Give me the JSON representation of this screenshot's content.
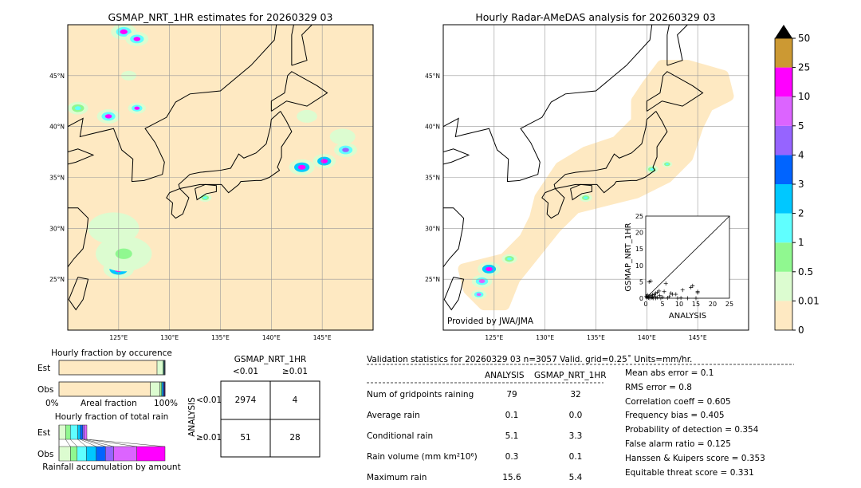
{
  "left_map": {
    "title": "GSMAP_NRT_1HR estimates for 20260329 03",
    "lon_ticks": [
      "125°E",
      "130°E",
      "135°E",
      "140°E",
      "145°E"
    ],
    "lat_ticks": [
      "45°N",
      "40°N",
      "35°N",
      "30°N",
      "25°N"
    ]
  },
  "right_map": {
    "title": "Hourly Radar-AMeDAS analysis for 20260329 03",
    "lon_ticks": [
      "125°E",
      "130°E",
      "135°E",
      "140°E",
      "145°E"
    ],
    "lat_ticks": [
      "45°N",
      "40°N",
      "35°N",
      "30°N",
      "25°N"
    ],
    "credit": "Provided by JWA/JMA"
  },
  "colors": {
    "levels": [
      {
        "from": "0",
        "to": "0.01",
        "color": "#fee9c2"
      },
      {
        "from": "0.01",
        "to": "0.5",
        "color": "#dcfcd0"
      },
      {
        "from": "0.5",
        "to": "1",
        "color": "#90f890"
      },
      {
        "from": "1",
        "to": "2",
        "color": "#60ffff"
      },
      {
        "from": "2",
        "to": "3",
        "color": "#00c8ff"
      },
      {
        "from": "3",
        "to": "4",
        "color": "#0064ff"
      },
      {
        "from": "4",
        "to": "5",
        "color": "#9664ff"
      },
      {
        "from": "5",
        "to": "10",
        "color": "#dc64ff"
      },
      {
        "from": "10",
        "to": "25",
        "color": "#ff00ff"
      },
      {
        "from": "25",
        "to": "50",
        "color": "#cc9933"
      }
    ],
    "labels": [
      "0",
      "0.01",
      "0.5",
      "1",
      "2",
      "3",
      "4",
      "5",
      "10",
      "25",
      "50"
    ],
    "extend_over": "#000000"
  },
  "chart_data": [
    {
      "type": "scatter",
      "xlabel": "ANALYSIS",
      "ylabel": "GSMAP_NRT_1HR",
      "xlim": [
        0,
        25
      ],
      "ylim": [
        0,
        25
      ],
      "ticks": [
        "0",
        "5",
        "10",
        "15",
        "20",
        "25"
      ],
      "points": [
        [
          1,
          5
        ],
        [
          1.5,
          5.2
        ],
        [
          6,
          4.5
        ],
        [
          13.5,
          3.3
        ],
        [
          14,
          3.8
        ],
        [
          15.5,
          2
        ],
        [
          15.5,
          1.7
        ],
        [
          11,
          2.5
        ],
        [
          9,
          1.2
        ],
        [
          7.5,
          1.5
        ],
        [
          8,
          1.2
        ],
        [
          5.5,
          2
        ],
        [
          4,
          2.2
        ],
        [
          3.5,
          1.8
        ],
        [
          3,
          1.5
        ],
        [
          2.5,
          1.2
        ],
        [
          2,
          1
        ],
        [
          1.5,
          0.8
        ],
        [
          1,
          0.6
        ],
        [
          0.5,
          0.4
        ],
        [
          0.3,
          0.2
        ],
        [
          0.8,
          0.1
        ],
        [
          1.2,
          0
        ],
        [
          2,
          0.3
        ],
        [
          2.8,
          0.5
        ],
        [
          3.5,
          0.2
        ],
        [
          4.2,
          0.8
        ],
        [
          5,
          0.3
        ],
        [
          6.5,
          0.1
        ],
        [
          9.5,
          0
        ],
        [
          12.5,
          0
        ],
        [
          15,
          0
        ],
        [
          0.5,
          1
        ],
        [
          1.8,
          0.2
        ],
        [
          2.2,
          0
        ],
        [
          0.2,
          0.6
        ],
        [
          3,
          0
        ],
        [
          4.5,
          0
        ],
        [
          7,
          0.5
        ],
        [
          10.5,
          0.1
        ]
      ]
    },
    {
      "type": "table",
      "title": "GSMAP_NRT_1HR",
      "col_headers": [
        "<0.01",
        "≥0.01"
      ],
      "row_label": "ANALYSIS",
      "row_headers": [
        "<0.01",
        "≥0.01"
      ],
      "cells": [
        [
          "2974",
          "4"
        ],
        [
          "51",
          "28"
        ]
      ]
    },
    {
      "type": "bar",
      "title": "Hourly fraction by occurence",
      "categories": [
        "Est",
        "Obs"
      ],
      "xlabel": "Areal fraction",
      "xticks": [
        "0%",
        "100%"
      ],
      "series": [
        {
          "values": [
            92.5,
            86.2
          ],
          "color": "#fee9c2"
        },
        {
          "values": [
            5.5,
            9.0
          ],
          "color": "#dcfcd0"
        },
        {
          "values": [
            0.8,
            1.6
          ],
          "color": "#90f890"
        },
        {
          "values": [
            0.5,
            1.0
          ],
          "color": "#00c8ff"
        },
        {
          "values": [
            0.4,
            1.2
          ],
          "color": "#0064ff"
        },
        {
          "values": [
            0.3,
            1.0
          ],
          "color": "#440066"
        }
      ]
    },
    {
      "type": "bar",
      "title": "Hourly fraction of total rain",
      "categories": [
        "Est",
        "Obs"
      ],
      "xlabel": "Rainfall accumulation by amount",
      "series": [
        {
          "values": [
            6.2,
            10.8
          ],
          "color": "#dcfcd0"
        },
        {
          "values": [
            4.5,
            6.3
          ],
          "color": "#90f890"
        },
        {
          "values": [
            7.0,
            8.7
          ],
          "color": "#60ffff"
        },
        {
          "values": [
            2.5,
            9.3
          ],
          "color": "#00c8ff"
        },
        {
          "values": [
            2.2,
            8.7
          ],
          "color": "#0064ff"
        },
        {
          "values": [
            1.5,
            7.8
          ],
          "color": "#9664ff"
        },
        {
          "values": [
            2.4,
            21.8
          ],
          "color": "#dc64ff"
        },
        {
          "values": [
            0,
            26.6
          ],
          "color": "#ff00ff"
        }
      ]
    }
  ],
  "stats": {
    "header": "Validation statistics for 20260329 03  n=3057 Valid. grid=0.25˚ Units=mm/hr.",
    "col1": "ANALYSIS",
    "col2": "GSMAP_NRT_1HR",
    "rows": [
      {
        "label": "Num of gridpoints raining",
        "a": "79",
        "g": "32"
      },
      {
        "label": "Average rain",
        "a": "0.1",
        "g": "0.0"
      },
      {
        "label": "Conditional rain",
        "a": "5.1",
        "g": "3.3"
      },
      {
        "label": "Rain volume (mm km²10⁶)",
        "a": "0.3",
        "g": "0.1"
      },
      {
        "label": "Maximum rain",
        "a": "15.6",
        "g": "5.4"
      }
    ],
    "scores": [
      "Mean abs error =    0.1",
      "RMS error =    0.8",
      "Correlation coeff =  0.605",
      "Frequency bias =  0.405",
      "Probability of detection =  0.354",
      "False alarm ratio =  0.125",
      "Hanssen & Kuipers score =  0.353",
      "Equitable threat score =  0.331"
    ]
  }
}
